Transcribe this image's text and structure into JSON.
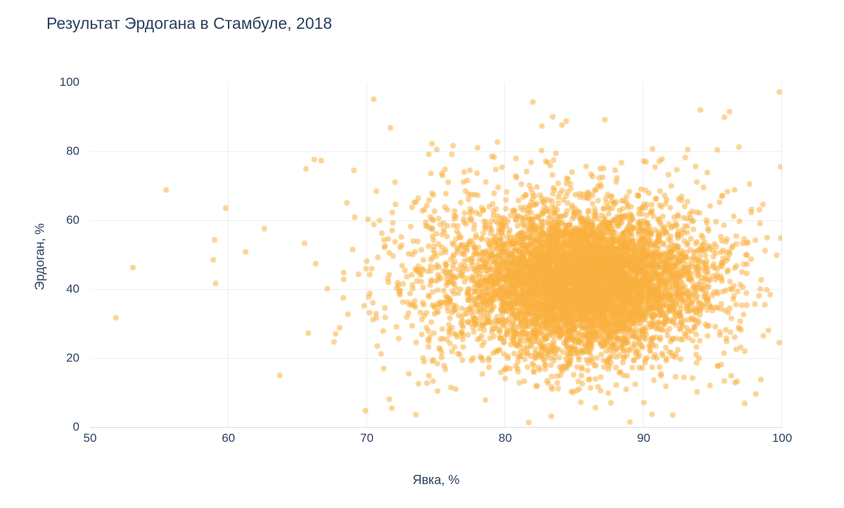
{
  "page": {
    "background": "#ffffff"
  },
  "colors": {
    "title_text": "#2a3f5f",
    "tick_text": "#2a3f5f",
    "grid": "#e9ecf1",
    "axis_line": "#d5dde8",
    "marker": "#f9b13f"
  },
  "chart_data": {
    "type": "scatter",
    "title": "Результат Эрдогана в Стамбуле, 2018",
    "xlabel": "Явка, %",
    "ylabel": "Эрдоган, %",
    "xlim": [
      50,
      100
    ],
    "ylim": [
      0,
      100
    ],
    "x_ticks": [
      50,
      60,
      70,
      80,
      90,
      100
    ],
    "y_ticks": [
      0,
      20,
      40,
      60,
      80,
      100
    ],
    "grid": true,
    "legend": "none",
    "marker": {
      "color": "#f9b13f",
      "opacity": 0.55,
      "radius": 4
    },
    "distribution": {
      "description": "dense gaussian cloud of polling stations centered near turnout 85.7%, Erdogan 42%",
      "seed": 20180624,
      "clusters": [
        {
          "n": 4800,
          "cx": 85.7,
          "cy": 42.0,
          "sx": 3.9,
          "sy": 9.3
        },
        {
          "n": 1600,
          "cx": 84.3,
          "cy": 43.0,
          "sx": 6.2,
          "sy": 14.5
        },
        {
          "n": 280,
          "cx": 82.5,
          "cy": 45.0,
          "sx": 9.0,
          "sy": 21.0
        }
      ]
    },
    "outlier_points": [
      [
        53.1,
        46.3
      ],
      [
        55.5,
        68.8
      ],
      [
        58.9,
        48.5
      ],
      [
        59.0,
        54.3
      ],
      [
        59.8,
        63.5
      ],
      [
        63.7,
        15.0
      ],
      [
        65.6,
        74.9
      ],
      [
        66.2,
        77.6
      ],
      [
        66.7,
        77.3
      ],
      [
        65.5,
        53.3
      ],
      [
        66.3,
        47.4
      ],
      [
        70.5,
        95.1
      ],
      [
        71.7,
        86.8
      ],
      [
        74.7,
        82.2
      ],
      [
        78.0,
        81.0
      ],
      [
        87.2,
        89.2
      ],
      [
        84.1,
        87.6
      ],
      [
        94.1,
        92.0
      ],
      [
        96.2,
        91.5
      ],
      [
        99.8,
        97.2
      ],
      [
        99.9,
        75.5
      ],
      [
        99.9,
        54.8
      ],
      [
        99.8,
        24.5
      ],
      [
        89.0,
        1.5
      ],
      [
        90.6,
        3.7
      ],
      [
        92.1,
        3.5
      ],
      [
        98.1,
        9.6
      ],
      [
        96.6,
        12.9
      ],
      [
        97.3,
        6.9
      ]
    ]
  }
}
